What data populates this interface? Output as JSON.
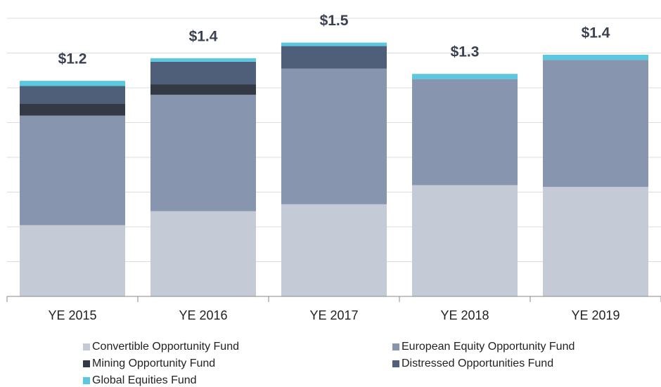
{
  "chart_data": {
    "type": "stacked_bar",
    "categories": [
      "YE 2015",
      "YE 2016",
      "YE 2017",
      "YE 2018",
      "YE 2019"
    ],
    "series": [
      {
        "name": "Convertible Opportunity Fund",
        "color": "#c5cad7",
        "values": [
          0.41,
          0.49,
          0.53,
          0.64,
          0.63
        ]
      },
      {
        "name": "European Equity Opportunity Fund",
        "color": "#8795ae",
        "values": [
          0.63,
          0.67,
          0.78,
          0.61,
          0.73
        ]
      },
      {
        "name": "Mining Opportunity Fund",
        "color": "#343a45",
        "values": [
          0.07,
          0.06,
          0,
          0,
          0
        ]
      },
      {
        "name": "Distressed Opportunities Fund",
        "color": "#4f5f7a",
        "values": [
          0.1,
          0.13,
          0.13,
          0,
          0
        ]
      },
      {
        "name": "Global Equities Fund",
        "color": "#5bc8e0",
        "values": [
          0.03,
          0.02,
          0.02,
          0.03,
          0.03
        ]
      }
    ],
    "total_labels": [
      "$1.2",
      "$1.4",
      "$1.5",
      "$1.3",
      "$1.4"
    ],
    "ylim": [
      0,
      1.6
    ],
    "yticks": [
      0,
      0.2,
      0.4,
      0.6,
      0.8,
      1,
      1.2,
      1.4,
      1.6
    ],
    "grid": true
  }
}
